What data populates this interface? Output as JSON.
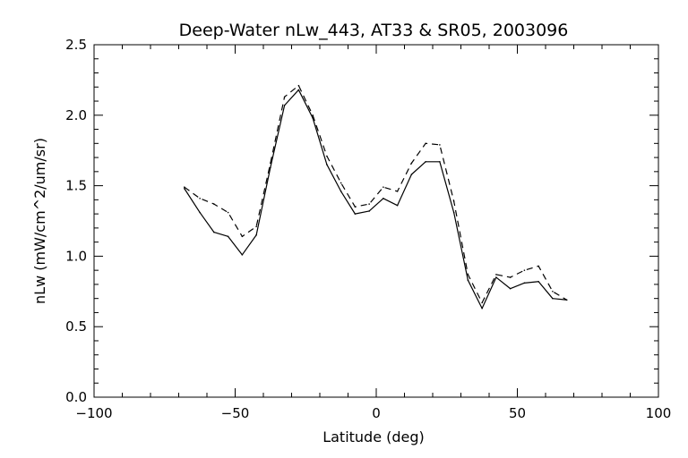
{
  "chart_data": {
    "type": "line",
    "title": "Deep-Water nLw_443, AT33 & SR05, 2003096",
    "xlabel": "Latitude (deg)",
    "ylabel": "nLw (mW/cm^2/um/sr)",
    "xlim": [
      -100,
      100
    ],
    "ylim": [
      0.0,
      2.5
    ],
    "x_ticks": [
      -100,
      -50,
      0,
      50,
      100
    ],
    "x_tick_labels": [
      "−100",
      "−50",
      "0",
      "50",
      "100"
    ],
    "y_ticks": [
      0.0,
      0.5,
      1.0,
      1.5,
      2.0,
      2.5
    ],
    "y_tick_labels": [
      "0.0",
      "0.5",
      "1.0",
      "1.5",
      "2.0",
      "2.5"
    ],
    "grid": false,
    "line_color": "#000000",
    "series": [
      {
        "style": "solid",
        "points": [
          [
            -68,
            1.48
          ],
          [
            -62.5,
            1.31
          ],
          [
            -57.5,
            1.17
          ],
          [
            -52.5,
            1.14
          ],
          [
            -47.5,
            1.01
          ],
          [
            -42.5,
            1.15
          ],
          [
            -37.5,
            1.63
          ],
          [
            -32.5,
            2.07
          ],
          [
            -27.5,
            2.18
          ],
          [
            -22.5,
            1.98
          ],
          [
            -17.5,
            1.65
          ],
          [
            -12.5,
            1.46
          ],
          [
            -7.5,
            1.3
          ],
          [
            -2.5,
            1.32
          ],
          [
            2.5,
            1.41
          ],
          [
            7.5,
            1.36
          ],
          [
            12.5,
            1.58
          ],
          [
            17.5,
            1.67
          ],
          [
            22.5,
            1.67
          ],
          [
            27.5,
            1.31
          ],
          [
            32.5,
            0.83
          ],
          [
            37.5,
            0.63
          ],
          [
            42.5,
            0.85
          ],
          [
            47.5,
            0.77
          ],
          [
            52.5,
            0.81
          ],
          [
            57.5,
            0.82
          ],
          [
            62.5,
            0.7
          ],
          [
            67.5,
            0.69
          ]
        ]
      },
      {
        "style": "dashed",
        "points": [
          [
            -68,
            1.49
          ],
          [
            -62.5,
            1.41
          ],
          [
            -57.5,
            1.37
          ],
          [
            -52.5,
            1.31
          ],
          [
            -47.5,
            1.14
          ],
          [
            -42.5,
            1.21
          ],
          [
            -37.5,
            1.66
          ],
          [
            -32.5,
            2.13
          ],
          [
            -27.5,
            2.21
          ],
          [
            -22.5,
            2.0
          ],
          [
            -17.5,
            1.71
          ],
          [
            -12.5,
            1.52
          ],
          [
            -7.5,
            1.35
          ],
          [
            -2.5,
            1.37
          ],
          [
            2.5,
            1.49
          ],
          [
            7.5,
            1.46
          ],
          [
            12.5,
            1.66
          ],
          [
            17.5,
            1.8
          ],
          [
            22.5,
            1.79
          ],
          [
            27.5,
            1.39
          ],
          [
            32.5,
            0.87
          ],
          [
            37.5,
            0.67
          ],
          [
            42.5,
            0.87
          ],
          [
            47.5,
            0.85
          ],
          [
            52.5,
            0.9
          ],
          [
            57.5,
            0.93
          ],
          [
            62.5,
            0.75
          ],
          [
            67.5,
            0.69
          ]
        ]
      }
    ]
  }
}
